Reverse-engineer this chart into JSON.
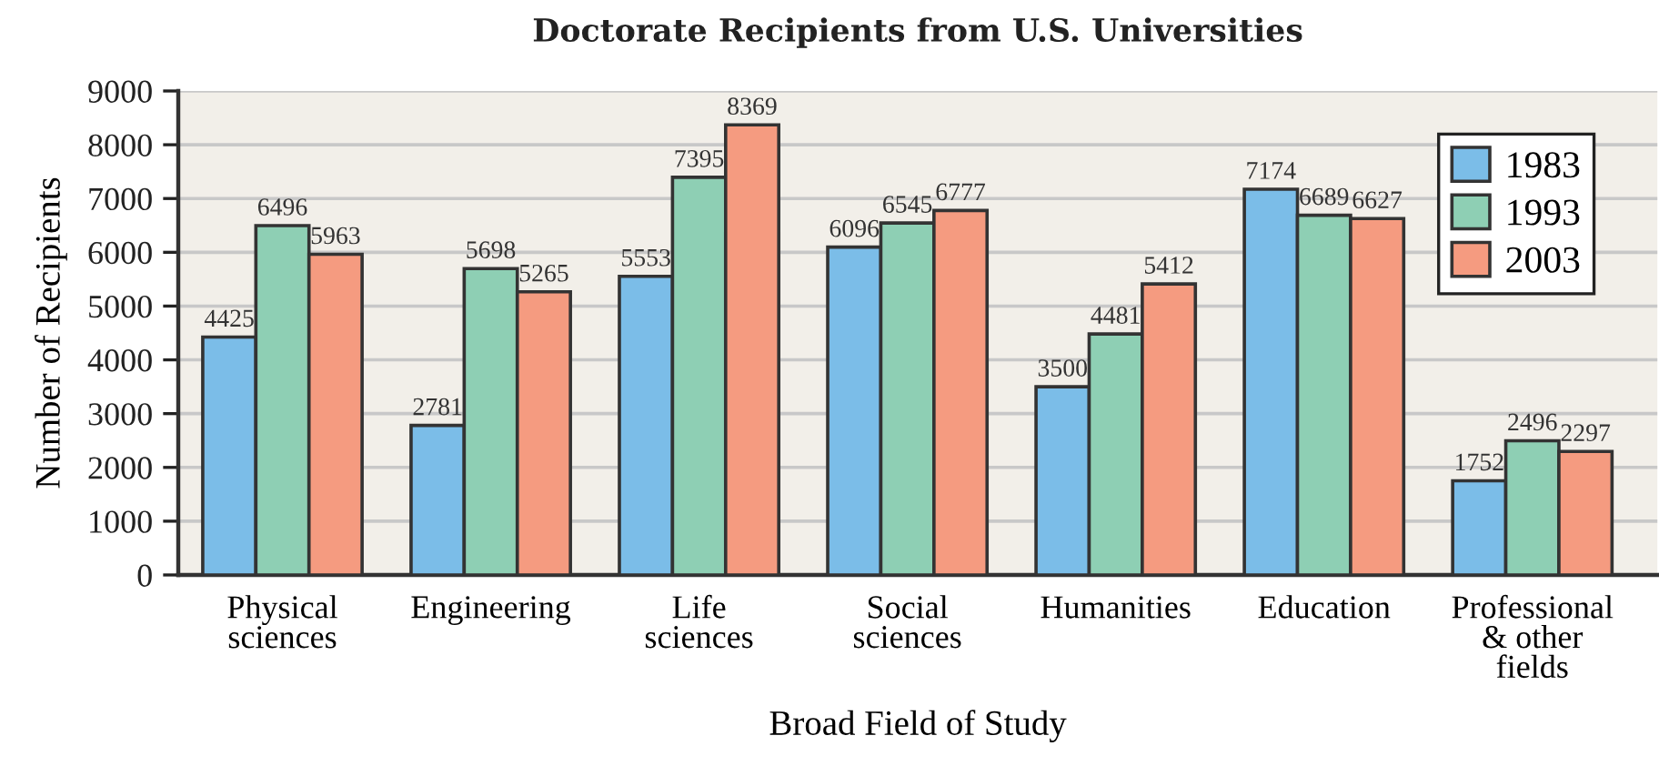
{
  "chart_data": {
    "type": "bar",
    "title": "Doctorate Recipients from U.S. Universities",
    "xlabel": "Broad Field of Study",
    "ylabel": "Number of Recipients",
    "categories": [
      "Physical\nsciences",
      "Engineering",
      "Life\nsciences",
      "Social\nsciences",
      "Humanities",
      "Education",
      "Professional\n& other\nfields"
    ],
    "series": [
      {
        "name": "1983",
        "color": "#7bbde8",
        "values": [
          4425,
          2781,
          5553,
          6096,
          3500,
          7174,
          1752
        ]
      },
      {
        "name": "1993",
        "color": "#8ecfb4",
        "values": [
          6496,
          5698,
          7395,
          6545,
          4481,
          6689,
          2496
        ]
      },
      {
        "name": "2003",
        "color": "#f59b80",
        "values": [
          5963,
          5265,
          8369,
          6777,
          5412,
          6627,
          2297
        ]
      }
    ],
    "ylim": [
      0,
      9000
    ],
    "yticks": [
      0,
      1000,
      2000,
      3000,
      4000,
      5000,
      6000,
      7000,
      8000,
      9000
    ],
    "grid": "y",
    "legend": "top right",
    "data_labels": true
  }
}
